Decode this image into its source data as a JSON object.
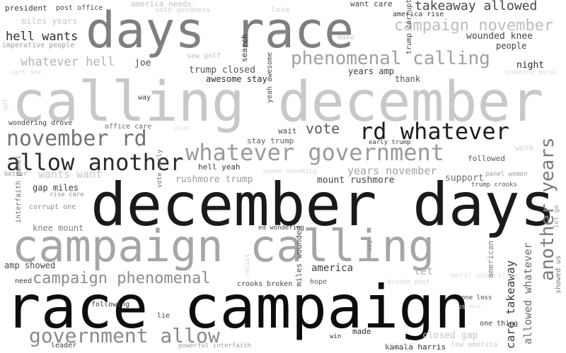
{
  "words": [
    {
      "text": "days race",
      "color": "#7f7f7f"
    },
    {
      "text": "calling december",
      "color": "#c8c8c8"
    },
    {
      "text": "december days",
      "color": "#1a1a1a"
    },
    {
      "text": "campaign calling",
      "color": "#a6a6a6"
    },
    {
      "text": "race campaign",
      "color": "#0d0d0d"
    },
    {
      "text": "rd whatever",
      "color": "#1c1c1c"
    },
    {
      "text": "whatever government",
      "color": "#9a9a9a"
    },
    {
      "text": "allow another",
      "color": "#2b2b2b"
    },
    {
      "text": "november rd",
      "color": "#737373"
    },
    {
      "text": "phenomenal calling",
      "color": "#a0a0a0"
    },
    {
      "text": "campaign november",
      "color": "#bdbdbd"
    },
    {
      "text": "government allow",
      "color": "#8a8a8a"
    },
    {
      "text": "campaign phenomenal",
      "color": "#8c8c8c"
    },
    {
      "text": "another years",
      "color": "#7a7a7a"
    },
    {
      "text": "takeaway allowed",
      "color": "#474747"
    },
    {
      "text": "hell wants",
      "color": "#303030"
    },
    {
      "text": "whatever hell",
      "color": "#b3b3b3"
    },
    {
      "text": "vote",
      "color": "#5c5c5c"
    },
    {
      "text": "years november",
      "color": "#a3a3a3"
    },
    {
      "text": "wants want",
      "color": "#c6c6c6"
    },
    {
      "text": "care takeaway",
      "color": "#3a3a3a"
    },
    {
      "text": "allowed whatever",
      "color": "#6b6b6b"
    },
    {
      "text": "trump closed",
      "color": "#555555"
    },
    {
      "text": "america",
      "color": "#3d3d3d"
    },
    {
      "text": "joe",
      "color": "#4d4d4d"
    },
    {
      "text": "wounded knee",
      "color": "#474747"
    },
    {
      "text": "people",
      "color": "#404040"
    },
    {
      "text": "night",
      "color": "#2e2e2e"
    },
    {
      "text": "years amp",
      "color": "#3b3b3b"
    },
    {
      "text": "thank",
      "color": "#555555"
    },
    {
      "text": "awesome stay",
      "color": "#2a2a2a"
    },
    {
      "text": "rushmore trump",
      "color": "#9a9a9a"
    },
    {
      "text": "mount rushmore",
      "color": "#444444"
    },
    {
      "text": "support",
      "color": "#6e6e6e"
    },
    {
      "text": "hell yeah",
      "color": "#3a3a3a"
    },
    {
      "text": "gap miles",
      "color": "#3e3e3e"
    },
    {
      "text": "knee mount",
      "color": "#808080"
    },
    {
      "text": "amp showed",
      "color": "#4a4a4a"
    },
    {
      "text": "let",
      "color": "#b0b0b0"
    },
    {
      "text": "closed gap",
      "color": "#c6c6c6"
    },
    {
      "text": "president",
      "color": "#3a3a3a"
    },
    {
      "text": "post office",
      "color": "#4a4a4a"
    },
    {
      "text": "america needs",
      "color": "#bdbdbd"
    },
    {
      "text": "vote goodness",
      "color": "#cfcfcf"
    },
    {
      "text": "love",
      "color": "#d0d0d0"
    },
    {
      "text": "want care",
      "color": "#444444"
    },
    {
      "text": "america rise",
      "color": "#3a3a3a"
    },
    {
      "text": "miles years",
      "color": "#c8c8c8"
    },
    {
      "text": "imperative people",
      "color": "#9c9c9c"
    },
    {
      "text": "next",
      "color": "#8c8c8c"
    },
    {
      "text": "make",
      "color": "#c8c8c8"
    },
    {
      "text": "saw golf",
      "color": "#bdbdbd"
    },
    {
      "text": "cart one",
      "color": "#d6d6d6"
    },
    {
      "text": "speaking moral",
      "color": "#dadada"
    },
    {
      "text": "way",
      "color": "#3d3d3d"
    },
    {
      "text": "wondering drove",
      "color": "#444444"
    },
    {
      "text": "office care",
      "color": "#6c6c6c"
    },
    {
      "text": "wait",
      "color": "#4a4a4a"
    },
    {
      "text": "stay trump",
      "color": "#5c5c5c"
    },
    {
      "text": "early trump",
      "color": "#444444"
    },
    {
      "text": "work",
      "color": "#d0d0d0"
    },
    {
      "text": "followed",
      "color": "#5a5a5a"
    },
    {
      "text": "better",
      "color": "#9a9a9a"
    },
    {
      "text": "women speaking",
      "color": "#d6d6d6"
    },
    {
      "text": "panel women",
      "color": "#9c9c9c"
    },
    {
      "text": "trump crooks",
      "color": "#555555"
    },
    {
      "text": "rise care",
      "color": "#8c8c8c"
    },
    {
      "text": "corrupt one",
      "color": "#8c8c8c"
    },
    {
      "text": "ed wondering",
      "color": "#444444"
    },
    {
      "text": "need",
      "color": "#3a3a3a"
    },
    {
      "text": "crooks broken",
      "color": "#444444"
    },
    {
      "text": "hope",
      "color": "#4a4a4a"
    },
    {
      "text": "broken post",
      "color": "#5a5a5a"
    },
    {
      "text": "moral imperative",
      "color": "#d0d0d0"
    },
    {
      "text": "one loss",
      "color": "#e0e0e0"
    },
    {
      "text": "following",
      "color": "#444444"
    },
    {
      "text": "lie",
      "color": "#3a3a3a"
    },
    {
      "text": "made",
      "color": "#3a3a3a"
    },
    {
      "text": "win",
      "color": "#2e2e2e"
    },
    {
      "text": "one thing",
      "color": "#2e2e2e"
    },
    {
      "text": "leader",
      "color": "#3a3a3a"
    },
    {
      "text": "powerful interfaith",
      "color": "#3e3e3e"
    },
    {
      "text": "kamala harris",
      "color": "#9c9c9c"
    },
    {
      "text": "law america",
      "color": "#2e2e2e"
    },
    {
      "text": "us mea",
      "color": "#c8c8c8"
    },
    {
      "text": "golf cart",
      "color": "#e0e0e0"
    },
    {
      "text": "good",
      "color": "#e0e0e0"
    },
    {
      "text": "search",
      "color": "#e4e4e4"
    },
    {
      "text": "yeah awesome",
      "color": "#2e2e2e"
    },
    {
      "text": "trump corrupt",
      "color": "#4a4a4a"
    },
    {
      "text": "got",
      "color": "#444444"
    },
    {
      "text": "vote early",
      "color": "#d6d6d6"
    },
    {
      "text": "say",
      "color": "#6b6b6b"
    },
    {
      "text": "interfaith panel",
      "color": "#8c8c8c"
    },
    {
      "text": "racist",
      "color": "#6c6c6c"
    },
    {
      "text": "american",
      "color": "#cfcfcf"
    },
    {
      "text": "showed us",
      "color": "#7a7a7a"
    },
    {
      "text": "miles wounded",
      "color": "#7a7a7a"
    },
    {
      "text": "let go",
      "color": "#9a9a9a"
    }
  ]
}
